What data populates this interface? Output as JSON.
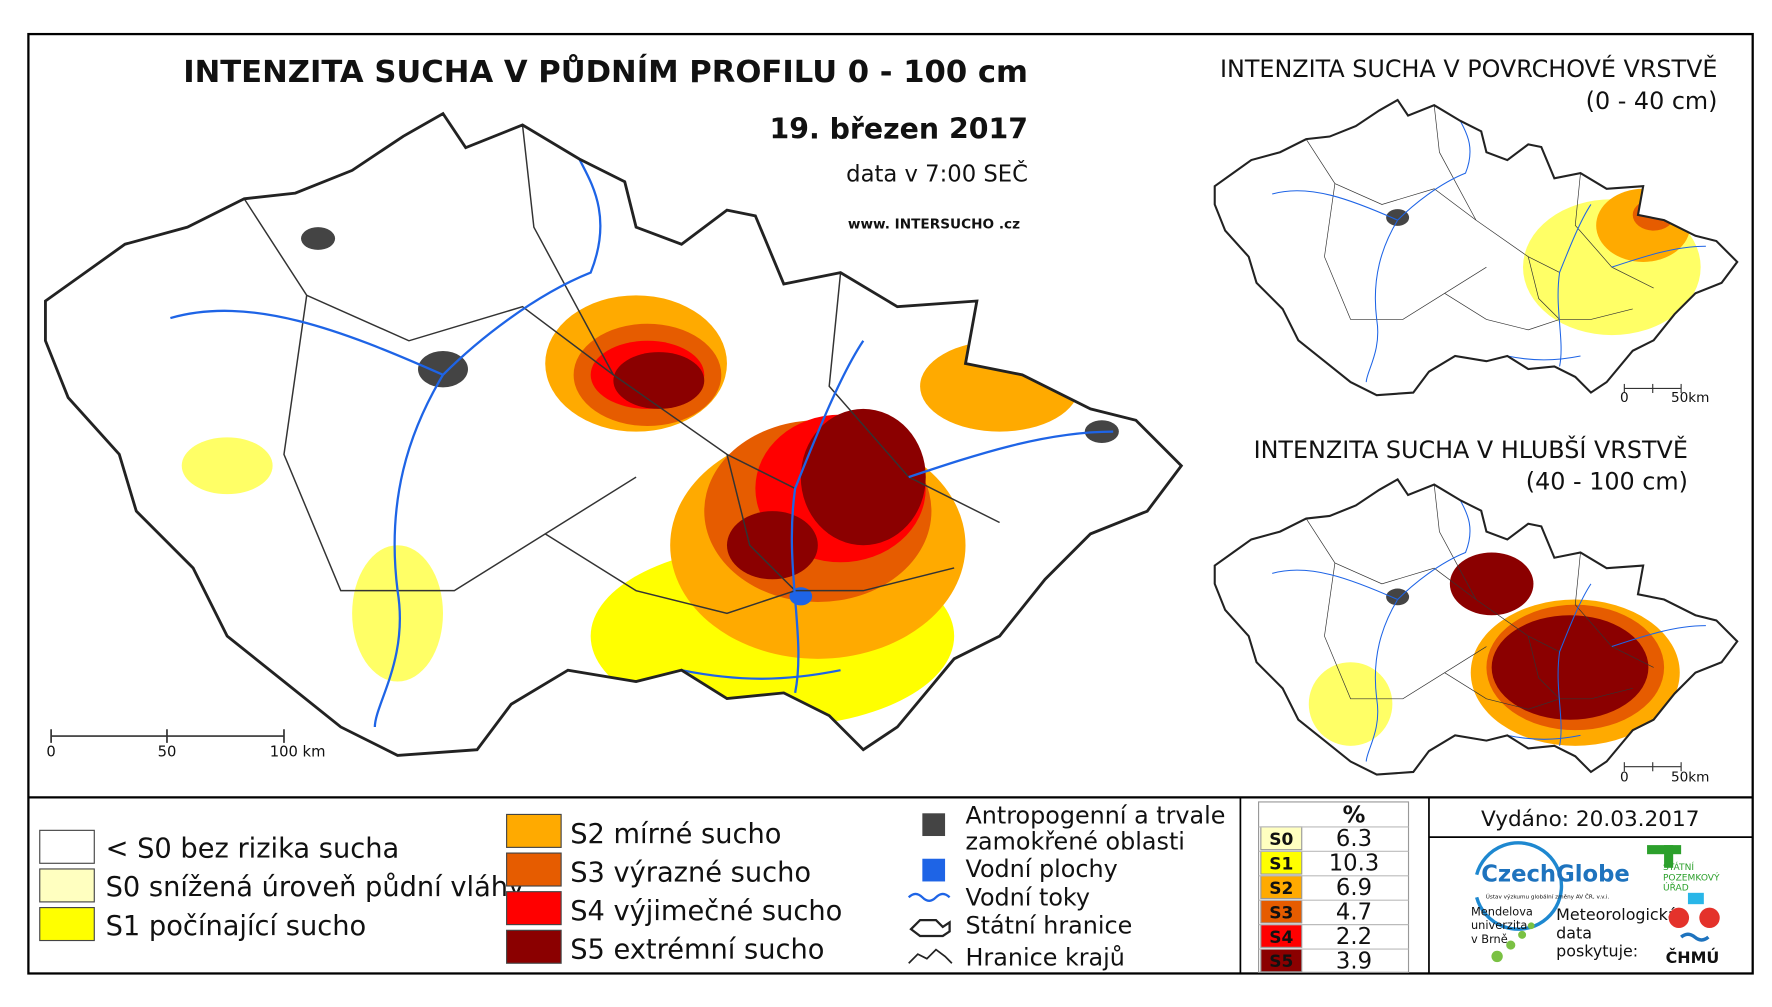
{
  "main_map": {
    "title": "INTENZITA SUCHA V PŮDNÍM PROFILU 0 - 100 cm",
    "date": "19. březen 2017",
    "time": "data v 7:00 SEČ",
    "website": "www. INTERSUCHO .cz",
    "scale": [
      "0",
      "50",
      "100 km"
    ]
  },
  "inset_top": {
    "title": "INTENZITA SUCHA V POVRCHOVÉ VRSTVĚ",
    "subtitle": "(0 - 40 cm)",
    "scale": [
      "0",
      "50km"
    ]
  },
  "inset_bottom": {
    "title": "INTENZITA SUCHA V HLUBŠÍ VRSTVĚ",
    "subtitle": "(40 - 100 cm)",
    "scale": [
      "0",
      "50km"
    ]
  },
  "legend": {
    "drought_left": [
      {
        "label": "< S0 bez rizika sucha",
        "color": "#ffffff"
      },
      {
        "label": "S0 snížená úroveň půdní vláhy",
        "color": "#ffffc0"
      },
      {
        "label": "S1 počínající sucho",
        "color": "#ffff00"
      }
    ],
    "drought_right": [
      {
        "label": "S2 mírné sucho",
        "color": "#ffaa00"
      },
      {
        "label": "S3 výrazné sucho",
        "color": "#e65c00"
      },
      {
        "label": "S4 výjimečné sucho",
        "color": "#ff0000"
      },
      {
        "label": "S5 extrémní sucho",
        "color": "#8b0000"
      }
    ],
    "features": [
      {
        "lines": [
          "Antropogenní a trvale",
          "zamokřené oblasti"
        ]
      },
      {
        "lines": [
          "Vodní plochy"
        ]
      },
      {
        "lines": [
          "Vodní toky"
        ]
      },
      {
        "lines": [
          "Státní hranice"
        ]
      },
      {
        "lines": [
          "Hranice krajů"
        ]
      }
    ]
  },
  "stats": {
    "header": "%",
    "rows": [
      {
        "class": "S0",
        "value": "6.3",
        "color": "#ffffc0"
      },
      {
        "class": "S1",
        "value": "10.3",
        "color": "#ffff00"
      },
      {
        "class": "S2",
        "value": "6.9",
        "color": "#ffaa00"
      },
      {
        "class": "S3",
        "value": "4.7",
        "color": "#e65c00"
      },
      {
        "class": "S4",
        "value": "2.2",
        "color": "#ff0000"
      },
      {
        "class": "S5",
        "value": "3.9",
        "color": "#8b0000"
      }
    ]
  },
  "issued": "Vydáno: 20.03.2017",
  "logos": {
    "czechglobe": "CzechGlobe",
    "czechglobe_sub": "Ústav výzkumu globální změny AV ČR, v.v.i.",
    "spu": [
      "STÁTNÍ",
      "POZEMKOVÝ",
      "ÚŘAD"
    ],
    "mendelu": [
      "Mendelova",
      "univerzita",
      "v Brně"
    ],
    "chmu_text": [
      "Meteorologická",
      "data",
      "poskytuje:"
    ],
    "chmu": "ČHMÚ"
  }
}
